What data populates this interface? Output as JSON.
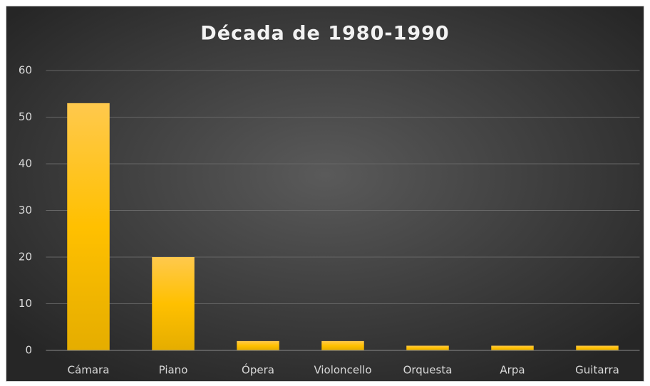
{
  "chart_data": {
    "type": "bar",
    "title": "Década de 1980-1990",
    "categories": [
      "Cámara",
      "Piano",
      "Ópera",
      "Violoncello",
      "Orquesta",
      "Arpa",
      "Guitarra"
    ],
    "values": [
      53,
      20,
      2,
      2,
      1,
      1,
      1
    ],
    "color": "#ffc000",
    "ylim": [
      0,
      60
    ],
    "yticks": [
      0,
      10,
      20,
      30,
      40,
      50,
      60
    ],
    "grid": true
  }
}
